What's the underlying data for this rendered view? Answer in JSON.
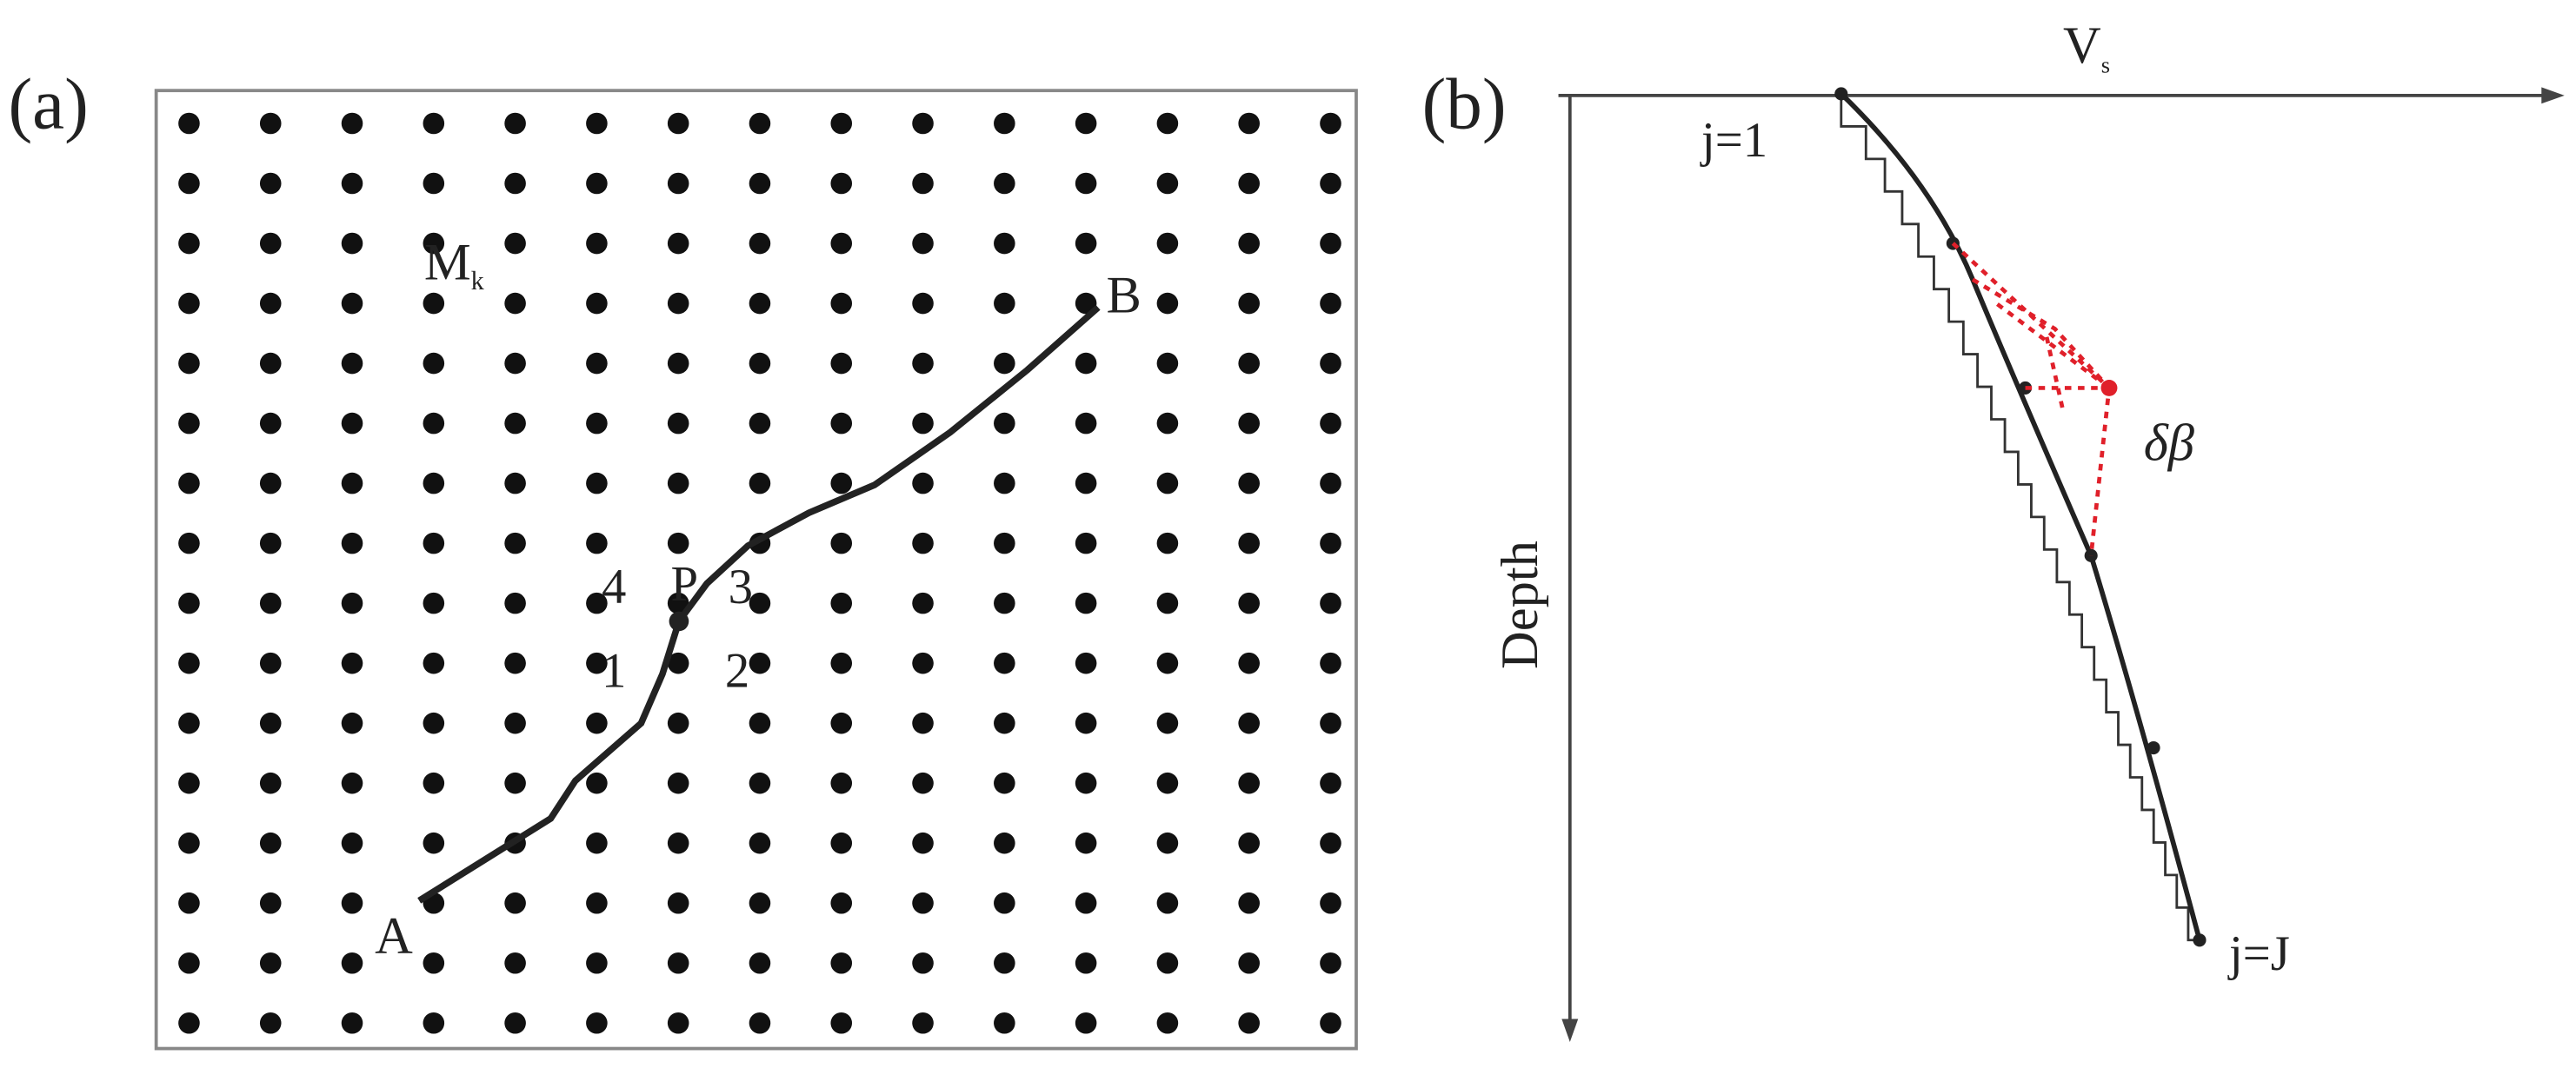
{
  "panel_a": {
    "label": "(a)",
    "grid_label": "M",
    "grid_label_sub": "k",
    "start": "A",
    "end": "B",
    "point": "P",
    "neighbors": [
      "1",
      "2",
      "3",
      "4"
    ]
  },
  "panel_b": {
    "label": "(b)",
    "x_axis": "V",
    "x_axis_sub": "s",
    "y_axis": "Depth",
    "first": "j=1",
    "last": "j=J",
    "perturbation": "δβ"
  }
}
